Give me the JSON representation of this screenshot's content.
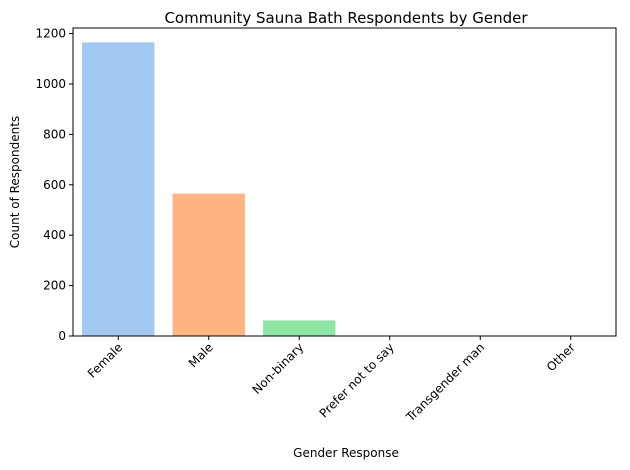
{
  "chart_data": {
    "type": "bar",
    "title": "Community Sauna Bath Respondents by Gender",
    "xlabel": "Gender Response",
    "ylabel": "Count of Respondents",
    "categories": [
      "Female",
      "Male",
      "Non-binary",
      "Prefer not to say",
      "Transgender man",
      "Other"
    ],
    "values": [
      1165,
      565,
      62,
      2,
      1,
      1
    ],
    "ylim": [
      0,
      1222
    ],
    "yticks": [
      0,
      200,
      400,
      600,
      800,
      1000,
      1200
    ],
    "colors": [
      "#a1c9f4",
      "#ffb482",
      "#8de5a1",
      "#ff9f9b",
      "#d0bbff",
      "#debb9b"
    ],
    "grid": false,
    "legend": "none"
  }
}
